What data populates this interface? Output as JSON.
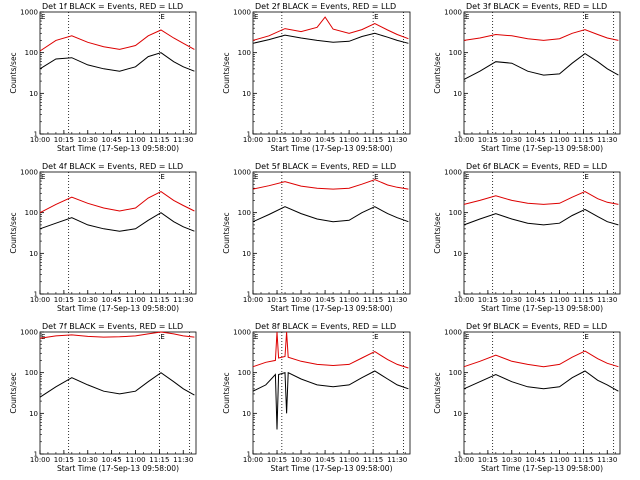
{
  "chart_data": [
    {
      "type": "line",
      "title": "Det 1f BLACK = Events, RED = LLD",
      "xlabel": "Start Time (17-Sep-13 09:58:00)",
      "ylabel": "Counts/sec",
      "scale_y": "log",
      "ylim": [
        1,
        1000
      ],
      "xlim": [
        "10:00",
        "11:38"
      ],
      "x_ticks": [
        "10:00",
        "10:15",
        "10:30",
        "10:45",
        "11:00",
        "11:15",
        "11:30"
      ],
      "y_ticks": [
        "1",
        "10",
        "100",
        "1000"
      ],
      "vlines": [
        "10:18",
        "11:15",
        "11:34"
      ],
      "markers": [
        {
          "label": "E",
          "at": "10:00"
        },
        {
          "label": "E",
          "at": "11:15"
        }
      ],
      "series": [
        {
          "label": "Events",
          "color": "#000000",
          "x": [
            "10:00",
            "10:10",
            "10:20",
            "10:30",
            "10:40",
            "10:50",
            "11:00",
            "11:08",
            "11:16",
            "11:24",
            "11:30",
            "11:37"
          ],
          "values": [
            40,
            70,
            75,
            50,
            40,
            35,
            45,
            80,
            100,
            60,
            45,
            35
          ]
        },
        {
          "label": "LLD",
          "color": "#dd0000",
          "x": [
            "10:00",
            "10:10",
            "10:20",
            "10:30",
            "10:40",
            "10:50",
            "11:00",
            "11:08",
            "11:16",
            "11:24",
            "11:30",
            "11:37"
          ],
          "values": [
            110,
            200,
            260,
            180,
            140,
            120,
            150,
            260,
            360,
            230,
            170,
            120
          ]
        }
      ]
    },
    {
      "type": "line",
      "title": "Det 2f BLACK = Events, RED = LLD",
      "xlabel": "Start Time (17-Sep-13 09:58:00)",
      "ylabel": "Counts/sec",
      "scale_y": "log",
      "ylim": [
        1,
        1000
      ],
      "xlim": [
        "10:00",
        "11:38"
      ],
      "x_ticks": [
        "10:00",
        "10:15",
        "10:30",
        "10:45",
        "11:00",
        "11:15",
        "11:30"
      ],
      "y_ticks": [
        "1",
        "10",
        "100",
        "1000"
      ],
      "vlines": [
        "10:18",
        "11:15",
        "11:34"
      ],
      "markers": [
        {
          "label": "E",
          "at": "10:00"
        },
        {
          "label": "E",
          "at": "11:15"
        }
      ],
      "series": [
        {
          "label": "Events",
          "color": "#000000",
          "x": [
            "10:00",
            "10:10",
            "10:20",
            "10:30",
            "10:40",
            "10:50",
            "11:00",
            "11:08",
            "11:16",
            "11:24",
            "11:30",
            "11:37"
          ],
          "values": [
            170,
            210,
            270,
            230,
            200,
            180,
            190,
            250,
            300,
            240,
            200,
            170
          ]
        },
        {
          "label": "LLD",
          "color": "#dd0000",
          "x": [
            "10:00",
            "10:10",
            "10:20",
            "10:30",
            "10:40",
            "10:45",
            "10:50",
            "11:00",
            "11:08",
            "11:16",
            "11:24",
            "11:30",
            "11:37"
          ],
          "values": [
            200,
            260,
            390,
            330,
            420,
            750,
            380,
            300,
            370,
            520,
            360,
            280,
            220
          ]
        }
      ]
    },
    {
      "type": "line",
      "title": "Det 3f BLACK = Events, RED = LLD",
      "xlabel": "Start Time (17-Sep-13 09:58:00)",
      "ylabel": "Counts/sec",
      "scale_y": "log",
      "ylim": [
        1,
        1000
      ],
      "xlim": [
        "10:00",
        "11:38"
      ],
      "x_ticks": [
        "10:00",
        "10:15",
        "10:30",
        "10:45",
        "11:00",
        "11:15",
        "11:30"
      ],
      "y_ticks": [
        "1",
        "10",
        "100",
        "1000"
      ],
      "vlines": [
        "10:18",
        "11:15",
        "11:34"
      ],
      "markers": [
        {
          "label": "E",
          "at": "10:00"
        },
        {
          "label": "E",
          "at": "11:15"
        }
      ],
      "series": [
        {
          "label": "Events",
          "color": "#000000",
          "x": [
            "10:00",
            "10:10",
            "10:20",
            "10:30",
            "10:40",
            "10:50",
            "11:00",
            "11:08",
            "11:16",
            "11:24",
            "11:30",
            "11:37"
          ],
          "values": [
            22,
            35,
            60,
            55,
            35,
            28,
            30,
            55,
            95,
            60,
            40,
            28
          ]
        },
        {
          "label": "LLD",
          "color": "#dd0000",
          "x": [
            "10:00",
            "10:10",
            "10:20",
            "10:30",
            "10:40",
            "10:50",
            "11:00",
            "11:08",
            "11:16",
            "11:24",
            "11:30",
            "11:37"
          ],
          "values": [
            200,
            230,
            280,
            260,
            220,
            200,
            220,
            300,
            370,
            280,
            230,
            200
          ]
        }
      ]
    },
    {
      "type": "line",
      "title": "Det 4f BLACK = Events, RED = LLD",
      "xlabel": "Start Time (17-Sep-13 09:58:00)",
      "ylabel": "Counts/sec",
      "scale_y": "log",
      "ylim": [
        1,
        1000
      ],
      "xlim": [
        "10:00",
        "11:38"
      ],
      "x_ticks": [
        "10:00",
        "10:15",
        "10:30",
        "10:45",
        "11:00",
        "11:15",
        "11:30"
      ],
      "y_ticks": [
        "1",
        "10",
        "100",
        "1000"
      ],
      "vlines": [
        "10:18",
        "11:15",
        "11:34"
      ],
      "markers": [
        {
          "label": "E",
          "at": "10:00"
        },
        {
          "label": "E",
          "at": "11:15"
        }
      ],
      "series": [
        {
          "label": "Events",
          "color": "#000000",
          "x": [
            "10:00",
            "10:10",
            "10:20",
            "10:30",
            "10:40",
            "10:50",
            "11:00",
            "11:08",
            "11:16",
            "11:24",
            "11:30",
            "11:37"
          ],
          "values": [
            40,
            55,
            75,
            50,
            40,
            35,
            40,
            65,
            100,
            60,
            45,
            35
          ]
        },
        {
          "label": "LLD",
          "color": "#dd0000",
          "x": [
            "10:00",
            "10:10",
            "10:20",
            "10:30",
            "10:40",
            "10:50",
            "11:00",
            "11:08",
            "11:16",
            "11:24",
            "11:30",
            "11:37"
          ],
          "values": [
            100,
            160,
            240,
            170,
            130,
            110,
            130,
            230,
            330,
            200,
            150,
            110
          ]
        }
      ]
    },
    {
      "type": "line",
      "title": "Det 5f BLACK = Events, RED = LLD",
      "xlabel": "Start Time (17-Sep-13 09:58:00)",
      "ylabel": "Counts/sec",
      "scale_y": "log",
      "ylim": [
        1,
        1000
      ],
      "xlim": [
        "10:00",
        "11:38"
      ],
      "x_ticks": [
        "10:00",
        "10:15",
        "10:30",
        "10:45",
        "11:00",
        "11:15",
        "11:30"
      ],
      "y_ticks": [
        "1",
        "10",
        "100",
        "1000"
      ],
      "vlines": [
        "10:18",
        "11:15",
        "11:34"
      ],
      "markers": [
        {
          "label": "E",
          "at": "10:00"
        },
        {
          "label": "E",
          "at": "11:15"
        }
      ],
      "series": [
        {
          "label": "Events",
          "color": "#000000",
          "x": [
            "10:00",
            "10:10",
            "10:20",
            "10:30",
            "10:40",
            "10:50",
            "11:00",
            "11:08",
            "11:16",
            "11:24",
            "11:30",
            "11:37"
          ],
          "values": [
            60,
            90,
            140,
            95,
            70,
            60,
            65,
            100,
            140,
            95,
            75,
            60
          ]
        },
        {
          "label": "LLD",
          "color": "#dd0000",
          "x": [
            "10:00",
            "10:10",
            "10:20",
            "10:30",
            "10:40",
            "10:50",
            "11:00",
            "11:08",
            "11:16",
            "11:24",
            "11:30",
            "11:37"
          ],
          "values": [
            380,
            460,
            580,
            450,
            400,
            380,
            400,
            500,
            650,
            480,
            420,
            380
          ]
        }
      ]
    },
    {
      "type": "line",
      "title": "Det 6f BLACK = Events, RED = LLD",
      "xlabel": "Start Time (17-Sep-13 09:58:00)",
      "ylabel": "Counts/sec",
      "scale_y": "log",
      "ylim": [
        1,
        1000
      ],
      "xlim": [
        "10:00",
        "11:38"
      ],
      "x_ticks": [
        "10:00",
        "10:15",
        "10:30",
        "10:45",
        "11:00",
        "11:15",
        "11:30"
      ],
      "y_ticks": [
        "1",
        "10",
        "100",
        "1000"
      ],
      "vlines": [
        "10:18",
        "11:15",
        "11:34"
      ],
      "markers": [
        {
          "label": "E",
          "at": "10:00"
        },
        {
          "label": "E",
          "at": "11:15"
        }
      ],
      "series": [
        {
          "label": "Events",
          "color": "#000000",
          "x": [
            "10:00",
            "10:10",
            "10:20",
            "10:30",
            "10:40",
            "10:50",
            "11:00",
            "11:08",
            "11:16",
            "11:24",
            "11:30",
            "11:37"
          ],
          "values": [
            50,
            70,
            95,
            70,
            55,
            50,
            55,
            85,
            120,
            80,
            60,
            50
          ]
        },
        {
          "label": "LLD",
          "color": "#dd0000",
          "x": [
            "10:00",
            "10:10",
            "10:20",
            "10:30",
            "10:40",
            "10:50",
            "11:00",
            "11:08",
            "11:16",
            "11:24",
            "11:30",
            "11:37"
          ],
          "values": [
            160,
            200,
            260,
            200,
            170,
            160,
            170,
            240,
            330,
            220,
            180,
            160
          ]
        }
      ]
    },
    {
      "type": "line",
      "title": "Det 7f BLACK = Events, RED = LLD",
      "xlabel": "Start Time (17-Sep-13 09:58:00)",
      "ylabel": "Counts/sec",
      "scale_y": "log",
      "ylim": [
        1,
        1000
      ],
      "xlim": [
        "10:00",
        "11:38"
      ],
      "x_ticks": [
        "10:00",
        "10:15",
        "10:30",
        "10:45",
        "11:00",
        "11:15",
        "11:30"
      ],
      "y_ticks": [
        "1",
        "10",
        "100",
        "1000"
      ],
      "vlines": [
        "10:18",
        "11:15",
        "11:34"
      ],
      "markers": [
        {
          "label": "E",
          "at": "10:00"
        },
        {
          "label": "E",
          "at": "11:15"
        }
      ],
      "series": [
        {
          "label": "Events",
          "color": "#000000",
          "x": [
            "10:00",
            "10:10",
            "10:20",
            "10:30",
            "10:40",
            "10:50",
            "11:00",
            "11:08",
            "11:16",
            "11:24",
            "11:30",
            "11:37"
          ],
          "values": [
            25,
            45,
            75,
            50,
            35,
            30,
            35,
            60,
            100,
            60,
            40,
            28
          ]
        },
        {
          "label": "LLD",
          "color": "#dd0000",
          "x": [
            "10:00",
            "10:10",
            "10:20",
            "10:30",
            "10:40",
            "10:50",
            "11:00",
            "11:08",
            "11:16",
            "11:24",
            "11:30",
            "11:37"
          ],
          "values": [
            700,
            800,
            850,
            780,
            750,
            760,
            800,
            900,
            1000,
            900,
            800,
            750
          ]
        }
      ]
    },
    {
      "type": "line",
      "title": "Det 8f BLACK = Events, RED = LLD",
      "xlabel": "Start Time (17-Sep-13 09:58:00)",
      "ylabel": "Counts/sec",
      "scale_y": "log",
      "ylim": [
        1,
        1000
      ],
      "xlim": [
        "10:00",
        "11:38"
      ],
      "x_ticks": [
        "10:00",
        "10:15",
        "10:30",
        "10:45",
        "11:00",
        "11:15",
        "11:30"
      ],
      "y_ticks": [
        "1",
        "10",
        "100",
        "1000"
      ],
      "vlines": [
        "10:18",
        "11:15",
        "11:34"
      ],
      "markers": [
        {
          "label": "E",
          "at": "10:00"
        },
        {
          "label": "E",
          "at": "11:15"
        }
      ],
      "series": [
        {
          "label": "Events",
          "color": "#000000",
          "x": [
            "10:00",
            "10:08",
            "10:14",
            "10:15",
            "10:16",
            "10:20",
            "10:21",
            "10:22",
            "10:30",
            "10:40",
            "10:50",
            "11:00",
            "11:08",
            "11:16",
            "11:24",
            "11:30",
            "11:37"
          ],
          "values": [
            35,
            50,
            90,
            4,
            90,
            100,
            10,
            100,
            70,
            50,
            45,
            50,
            75,
            110,
            70,
            50,
            40
          ]
        },
        {
          "label": "LLD",
          "color": "#dd0000",
          "x": [
            "10:00",
            "10:08",
            "10:14",
            "10:15",
            "10:16",
            "10:20",
            "10:21",
            "10:22",
            "10:30",
            "10:40",
            "10:50",
            "11:00",
            "11:08",
            "11:16",
            "11:24",
            "11:30",
            "11:37"
          ],
          "values": [
            140,
            180,
            200,
            1000,
            230,
            250,
            1000,
            240,
            190,
            160,
            150,
            160,
            230,
            330,
            210,
            160,
            130
          ]
        }
      ]
    },
    {
      "type": "line",
      "title": "Det 9f BLACK = Events, RED = LLD",
      "xlabel": "Start Time (17-Sep-13 09:58:00)",
      "ylabel": "Counts/sec",
      "scale_y": "log",
      "ylim": [
        1,
        1000
      ],
      "xlim": [
        "10:00",
        "11:38"
      ],
      "x_ticks": [
        "10:00",
        "10:15",
        "10:30",
        "10:45",
        "11:00",
        "11:15",
        "11:30"
      ],
      "y_ticks": [
        "1",
        "10",
        "100",
        "1000"
      ],
      "vlines": [
        "10:18",
        "11:15",
        "11:34"
      ],
      "markers": [
        {
          "label": "E",
          "at": "10:00"
        },
        {
          "label": "E",
          "at": "11:15"
        }
      ],
      "series": [
        {
          "label": "Events",
          "color": "#000000",
          "x": [
            "10:00",
            "10:10",
            "10:20",
            "10:30",
            "10:40",
            "10:50",
            "11:00",
            "11:08",
            "11:16",
            "11:24",
            "11:30",
            "11:37"
          ],
          "values": [
            40,
            60,
            90,
            60,
            45,
            40,
            45,
            75,
            110,
            65,
            50,
            35
          ]
        },
        {
          "label": "LLD",
          "color": "#dd0000",
          "x": [
            "10:00",
            "10:10",
            "10:20",
            "10:30",
            "10:40",
            "10:50",
            "11:00",
            "11:08",
            "11:16",
            "11:24",
            "11:30",
            "11:37"
          ],
          "values": [
            140,
            190,
            270,
            190,
            160,
            140,
            160,
            240,
            340,
            220,
            170,
            140
          ]
        }
      ]
    }
  ]
}
